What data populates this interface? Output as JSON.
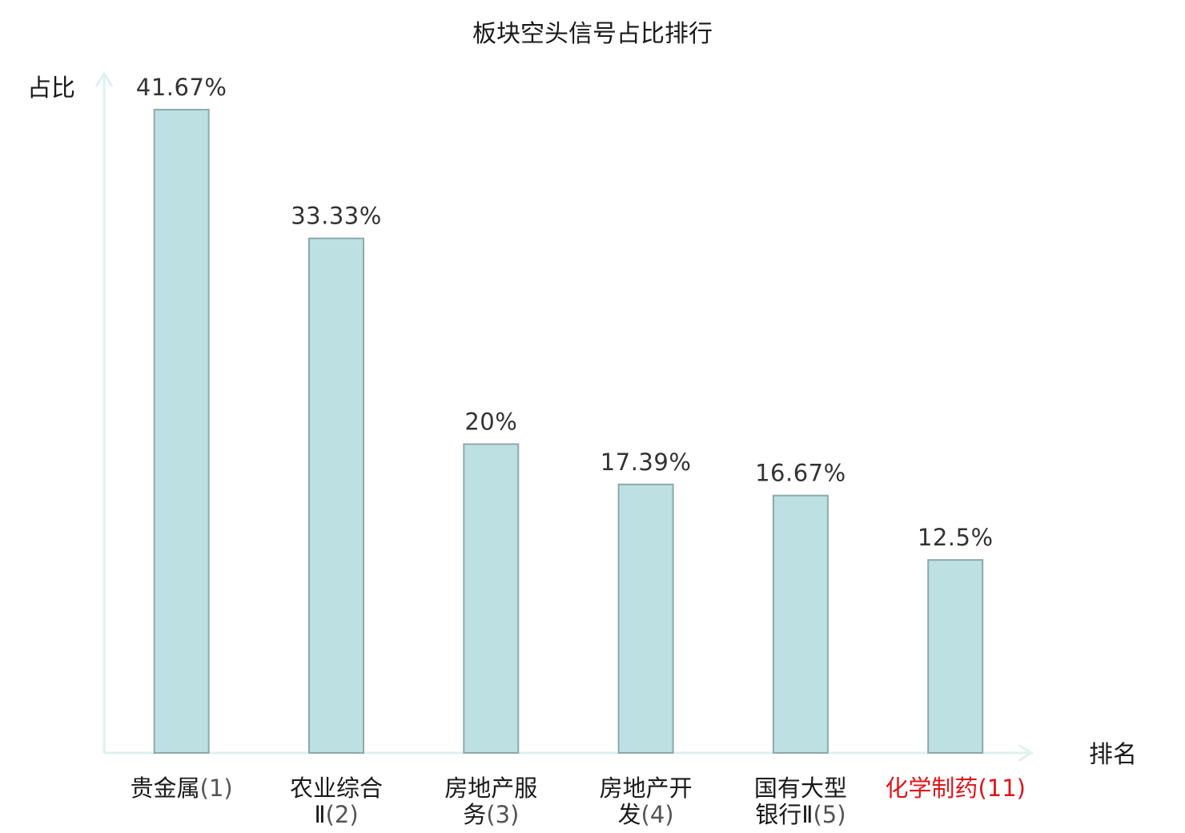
{
  "chart_data": {
    "type": "bar",
    "title": "板块空头信号占比排行",
    "ylabel": "占比",
    "xlabel": "排名",
    "ylim": [
      0,
      44
    ],
    "grid": false,
    "categories": [
      {
        "name_lines": [
          "贵金属"
        ],
        "rank": "(1)",
        "highlight": false
      },
      {
        "name_lines": [
          "农业综合",
          "Ⅱ"
        ],
        "rank": "(2)",
        "highlight": false
      },
      {
        "name_lines": [
          "房地产服",
          "务"
        ],
        "rank": "(3)",
        "highlight": false
      },
      {
        "name_lines": [
          "房地产开",
          "发"
        ],
        "rank": "(4)",
        "highlight": false
      },
      {
        "name_lines": [
          "国有大型",
          "银行Ⅱ"
        ],
        "rank": "(5)",
        "highlight": false
      },
      {
        "name_lines": [
          "化学制药"
        ],
        "rank": "(11)",
        "highlight": true
      }
    ],
    "values": [
      41.67,
      33.33,
      20,
      17.39,
      16.67,
      12.5
    ],
    "value_labels": [
      "41.67%",
      "33.33%",
      "20%",
      "17.39%",
      "16.67%",
      "12.5%"
    ],
    "colors": {
      "bar_fill": "#bde0e3",
      "bar_stroke": "#8fa9ab",
      "axis": "#dff1ee",
      "highlight_text": "#e0151b"
    }
  }
}
